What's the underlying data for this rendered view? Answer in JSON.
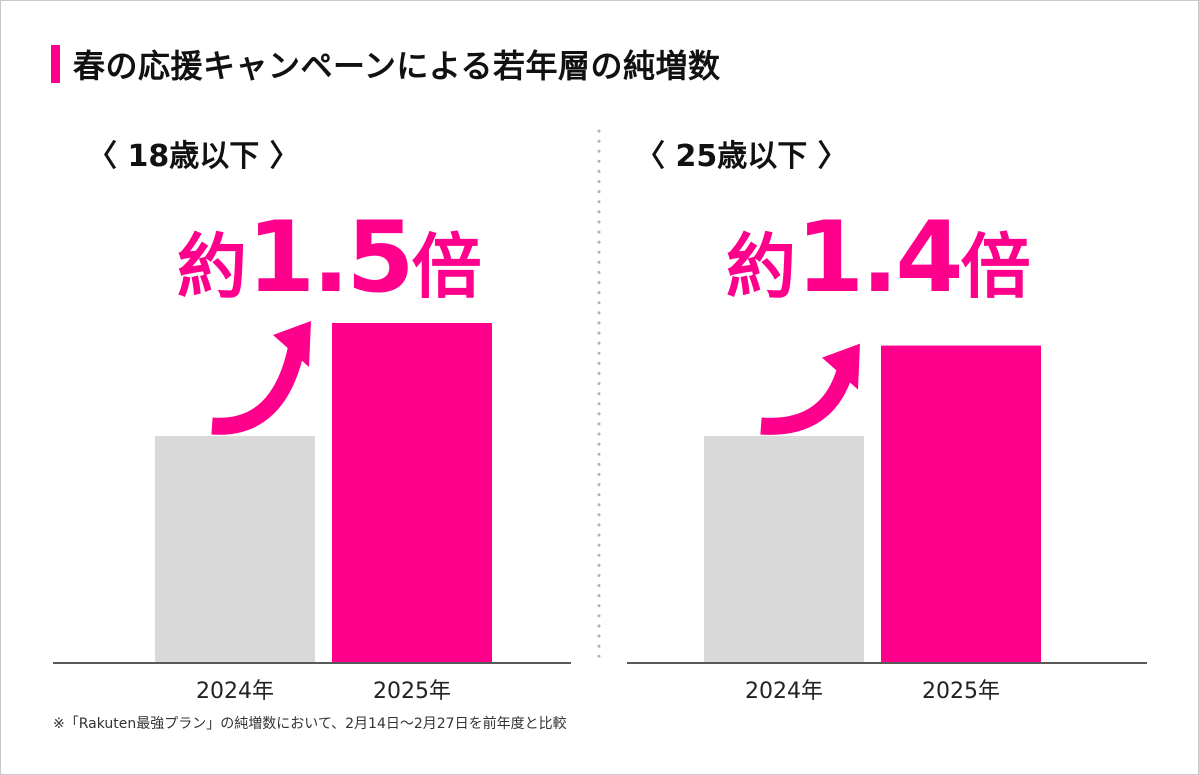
{
  "title": "春の応援キャンペーンによる若年層の純増数",
  "colors": {
    "accent": "#ff008c",
    "baseline_bar": "#d9d9d9",
    "axis": "#222222",
    "divider": "#b4b4b4"
  },
  "chart_data": [
    {
      "type": "bar",
      "label": "〈 18歳以下 〉",
      "multiplier": {
        "prefix": "約",
        "value": "1.5",
        "suffix": "倍"
      },
      "categories": [
        "2024年",
        "2025年"
      ],
      "values": [
        1.0,
        1.5
      ],
      "ylim": [
        0,
        1.5
      ],
      "trend_arrow": "up"
    },
    {
      "type": "bar",
      "label": "〈 25歳以下 〉",
      "multiplier": {
        "prefix": "約",
        "value": "1.4",
        "suffix": "倍"
      },
      "categories": [
        "2024年",
        "2025年"
      ],
      "values": [
        1.0,
        1.4
      ],
      "ylim": [
        0,
        1.5
      ],
      "trend_arrow": "up"
    }
  ],
  "footnote": "※「Rakuten最強プラン」の純増数において、2月14日～2月27日を前年度と比較"
}
